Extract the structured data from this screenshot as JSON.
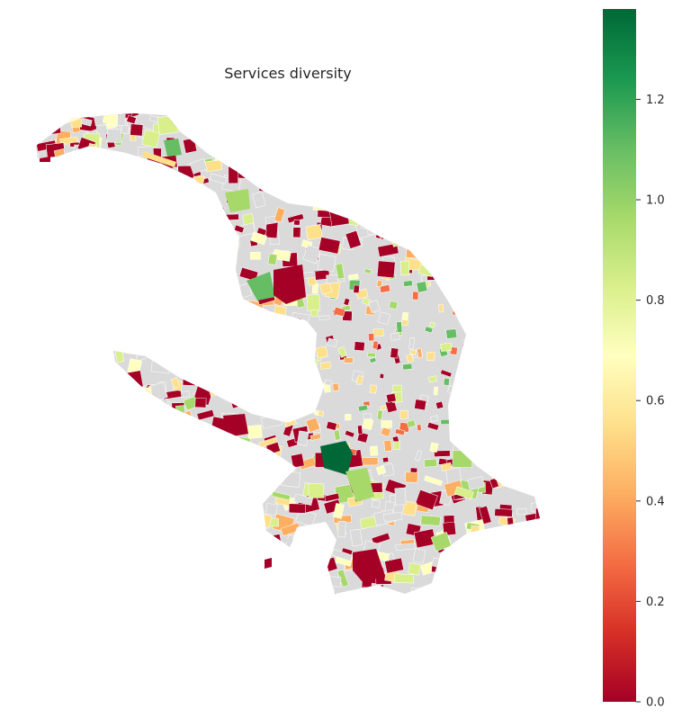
{
  "title": "Services diversity",
  "colormap": "RdYlGn",
  "colors": {
    "no_data": "#dadada",
    "low": "#a50026",
    "mid": "#ffffbf",
    "high": "#006837",
    "background": "#ffffff"
  },
  "colorbar": {
    "min": 0.0,
    "max": 1.38,
    "ticks": [
      "0.0",
      "0.2",
      "0.4",
      "0.6",
      "0.8",
      "1.0",
      "1.2"
    ],
    "tick_values": [
      0.0,
      0.2,
      0.4,
      0.6,
      0.8,
      1.0,
      1.2
    ]
  }
}
